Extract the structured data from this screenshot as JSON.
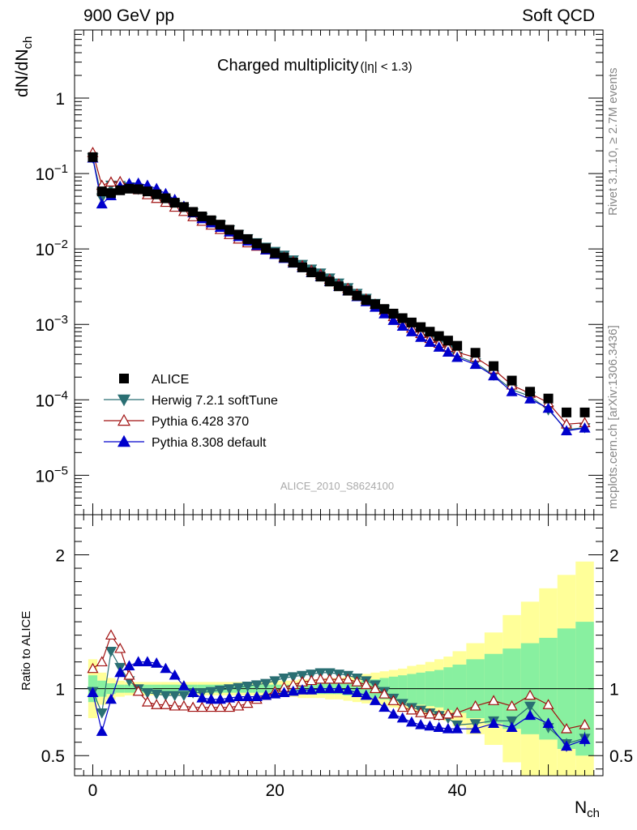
{
  "header": {
    "left": "900 GeV pp",
    "right": "Soft QCD"
  },
  "side_labels": {
    "top": "Rivet 3.1.10, ≥ 2.7M events",
    "bottom": "mcplots.cern.ch [arXiv:1306.3436]"
  },
  "chart_data": {
    "type": "scatter",
    "title": "Charged multiplicity",
    "title_suffix": "(|η| < 1.3)",
    "watermark": "ALICE_2010_S8624100",
    "ylabel": "dN/dN_ch",
    "ratio_ylabel": "Ratio to ALICE",
    "xlabel": "N_ch",
    "xlim": [
      -2,
      56
    ],
    "ylim_log": [
      3e-06,
      8
    ],
    "ratio_ylim": [
      0.35,
      2.3
    ],
    "yscale": "log",
    "x_ticks": [
      0,
      20,
      40
    ],
    "y_ticks": [
      {
        "v": 1,
        "label": "1"
      },
      {
        "v": 0.1,
        "label": "10",
        "exp": "−1"
      },
      {
        "v": 0.01,
        "label": "10",
        "exp": "−2"
      },
      {
        "v": 0.001,
        "label": "10",
        "exp": "−3"
      },
      {
        "v": 0.0001,
        "label": "10",
        "exp": "−4"
      },
      {
        "v": 1e-05,
        "label": "10",
        "exp": "−5"
      }
    ],
    "ratio_ticks": [
      {
        "v": 0.5,
        "label": "0.5"
      },
      {
        "v": 1,
        "label": "1"
      },
      {
        "v": 2,
        "label": "2"
      }
    ],
    "legend_position": "lower-left",
    "data": {
      "name": "ALICE",
      "color": "#000000",
      "x": [
        0,
        1,
        2,
        3,
        4,
        5,
        6,
        7,
        8,
        9,
        10,
        11,
        12,
        13,
        14,
        15,
        16,
        17,
        18,
        19,
        20,
        21,
        22,
        23,
        24,
        25,
        26,
        27,
        28,
        29,
        30,
        31,
        32,
        33,
        34,
        35,
        36,
        37,
        38,
        39,
        40,
        42,
        44,
        46,
        48,
        50,
        52,
        54
      ],
      "y": [
        0.165,
        0.058,
        0.055,
        0.06,
        0.063,
        0.062,
        0.058,
        0.053,
        0.047,
        0.041,
        0.036,
        0.031,
        0.027,
        0.024,
        0.021,
        0.018,
        0.0155,
        0.0135,
        0.0118,
        0.0102,
        0.0088,
        0.0077,
        0.0066,
        0.0057,
        0.0049,
        0.0043,
        0.0037,
        0.0032,
        0.0028,
        0.0024,
        0.0021,
        0.00185,
        0.0016,
        0.00139,
        0.00121,
        0.00106,
        0.00092,
        0.0008,
        0.0007,
        0.00061,
        0.00052,
        0.00042,
        0.00028,
        0.00018,
        0.000128,
        0.000104,
        6.8e-05,
        6.8e-05
      ]
    },
    "series": [
      {
        "name": "Herwig 7.2.1 softTune",
        "color": "#2a6f73",
        "marker": "triangle-down-filled",
        "x": [
          0,
          1,
          2,
          3,
          4,
          5,
          6,
          7,
          8,
          9,
          10,
          11,
          12,
          13,
          14,
          15,
          16,
          17,
          18,
          19,
          20,
          21,
          22,
          23,
          24,
          25,
          26,
          27,
          28,
          29,
          30,
          31,
          32,
          33,
          34,
          35,
          36,
          37,
          38,
          39,
          40,
          42,
          44,
          46,
          48,
          50,
          52,
          54
        ],
        "ratio": [
          0.98,
          0.82,
          1.28,
          1.16,
          1.06,
          1.0,
          0.97,
          0.96,
          0.95,
          0.95,
          0.95,
          0.97,
          0.97,
          0.98,
          0.99,
          1.0,
          1.01,
          1.02,
          1.03,
          1.04,
          1.06,
          1.08,
          1.09,
          1.1,
          1.11,
          1.12,
          1.12,
          1.11,
          1.1,
          1.08,
          1.06,
          1.03,
          0.98,
          0.93,
          0.89,
          0.86,
          0.84,
          0.82,
          0.8,
          0.78,
          0.73,
          0.74,
          0.76,
          0.76,
          0.87,
          0.71,
          0.59,
          0.63
        ],
        "yerr": [
          0,
          0,
          0,
          0,
          0,
          0,
          0,
          0,
          0,
          0,
          0,
          0,
          0,
          0,
          0,
          0,
          0,
          0,
          0,
          0,
          0,
          0,
          0,
          0,
          0,
          0,
          0,
          0,
          0,
          0,
          0,
          0,
          0,
          0,
          0,
          0,
          0,
          0,
          0,
          0,
          0,
          0,
          0,
          0,
          0,
          0.03,
          0.04,
          0.05
        ]
      },
      {
        "name": "Pythia 6.428 370",
        "color": "#a01010",
        "marker": "triangle-up-open",
        "x": [
          0,
          1,
          2,
          3,
          4,
          5,
          6,
          7,
          8,
          9,
          10,
          11,
          12,
          13,
          14,
          15,
          16,
          17,
          18,
          19,
          20,
          21,
          22,
          23,
          24,
          25,
          26,
          27,
          28,
          29,
          30,
          31,
          32,
          33,
          34,
          35,
          36,
          37,
          38,
          39,
          40,
          42,
          44,
          46,
          48,
          50,
          52,
          54
        ],
        "ratio": [
          1.15,
          1.2,
          1.4,
          1.3,
          1.1,
          0.98,
          0.9,
          0.88,
          0.88,
          0.87,
          0.87,
          0.86,
          0.86,
          0.86,
          0.86,
          0.86,
          0.87,
          0.89,
          0.92,
          0.95,
          0.98,
          1.01,
          1.03,
          1.05,
          1.06,
          1.07,
          1.07,
          1.07,
          1.07,
          1.05,
          1.03,
          1.0,
          0.96,
          0.91,
          0.86,
          0.84,
          0.82,
          0.81,
          0.8,
          0.81,
          0.82,
          0.87,
          0.91,
          0.87,
          0.95,
          0.88,
          0.7,
          0.73
        ],
        "yerr": [
          0,
          0,
          0,
          0,
          0,
          0,
          0,
          0,
          0,
          0,
          0,
          0,
          0,
          0,
          0,
          0,
          0,
          0,
          0,
          0,
          0,
          0,
          0,
          0,
          0,
          0,
          0,
          0,
          0,
          0,
          0,
          0,
          0,
          0,
          0,
          0,
          0,
          0,
          0,
          0,
          0,
          0,
          0,
          0,
          0,
          0.03,
          0.03,
          0.04
        ]
      },
      {
        "name": "Pythia 8.308 default",
        "color": "#0000cc",
        "marker": "triangle-up-filled",
        "x": [
          0,
          1,
          2,
          3,
          4,
          5,
          6,
          7,
          8,
          9,
          10,
          11,
          12,
          13,
          14,
          15,
          16,
          17,
          18,
          19,
          20,
          21,
          22,
          23,
          24,
          25,
          26,
          27,
          28,
          29,
          30,
          31,
          32,
          33,
          34,
          35,
          36,
          37,
          38,
          39,
          40,
          42,
          44,
          46,
          48,
          50,
          52,
          54
        ],
        "ratio": [
          0.97,
          0.68,
          0.92,
          1.12,
          1.17,
          1.2,
          1.2,
          1.19,
          1.15,
          1.1,
          1.02,
          0.97,
          0.93,
          0.92,
          0.92,
          0.93,
          0.94,
          0.94,
          0.94,
          0.95,
          0.96,
          0.97,
          0.98,
          0.99,
          0.99,
          1.0,
          1.0,
          1.0,
          0.99,
          0.97,
          0.95,
          0.91,
          0.86,
          0.81,
          0.78,
          0.75,
          0.73,
          0.72,
          0.71,
          0.7,
          0.7,
          0.7,
          0.74,
          0.71,
          0.8,
          0.74,
          0.57,
          0.62
        ],
        "yerr": [
          0,
          0,
          0,
          0,
          0,
          0,
          0,
          0,
          0,
          0,
          0,
          0,
          0,
          0,
          0,
          0,
          0,
          0,
          0,
          0,
          0,
          0,
          0,
          0,
          0,
          0,
          0,
          0,
          0,
          0,
          0,
          0,
          0,
          0,
          0,
          0,
          0,
          0,
          0,
          0,
          0,
          0,
          0,
          0,
          0,
          0.04,
          0.04,
          0.05
        ]
      }
    ],
    "uncertainty_bands": {
      "colors": {
        "stat": "#88f0a0",
        "total": "#ffff99"
      },
      "x": [
        0,
        1,
        2,
        3,
        4,
        5,
        6,
        7,
        8,
        9,
        10,
        11,
        12,
        13,
        14,
        15,
        16,
        17,
        18,
        19,
        20,
        21,
        22,
        23,
        24,
        25,
        26,
        27,
        28,
        29,
        30,
        31,
        32,
        33,
        34,
        35,
        36,
        37,
        38,
        39,
        40,
        42,
        44,
        46,
        48,
        50,
        52,
        54
      ],
      "stat_half": [
        0.1,
        0.06,
        0.04,
        0.03,
        0.03,
        0.03,
        0.03,
        0.03,
        0.03,
        0.03,
        0.03,
        0.03,
        0.03,
        0.03,
        0.03,
        0.03,
        0.03,
        0.03,
        0.03,
        0.03,
        0.03,
        0.03,
        0.03,
        0.04,
        0.04,
        0.04,
        0.04,
        0.04,
        0.05,
        0.05,
        0.06,
        0.07,
        0.08,
        0.09,
        0.1,
        0.11,
        0.12,
        0.13,
        0.14,
        0.16,
        0.18,
        0.22,
        0.26,
        0.3,
        0.34,
        0.38,
        0.45,
        0.5
      ],
      "total_half": [
        0.22,
        0.12,
        0.08,
        0.06,
        0.05,
        0.05,
        0.05,
        0.05,
        0.05,
        0.05,
        0.05,
        0.05,
        0.05,
        0.05,
        0.05,
        0.05,
        0.05,
        0.05,
        0.05,
        0.06,
        0.06,
        0.06,
        0.06,
        0.07,
        0.07,
        0.07,
        0.08,
        0.08,
        0.09,
        0.1,
        0.11,
        0.12,
        0.13,
        0.14,
        0.15,
        0.17,
        0.18,
        0.2,
        0.22,
        0.24,
        0.28,
        0.34,
        0.42,
        0.55,
        0.65,
        0.75,
        0.85,
        0.95
      ]
    }
  }
}
